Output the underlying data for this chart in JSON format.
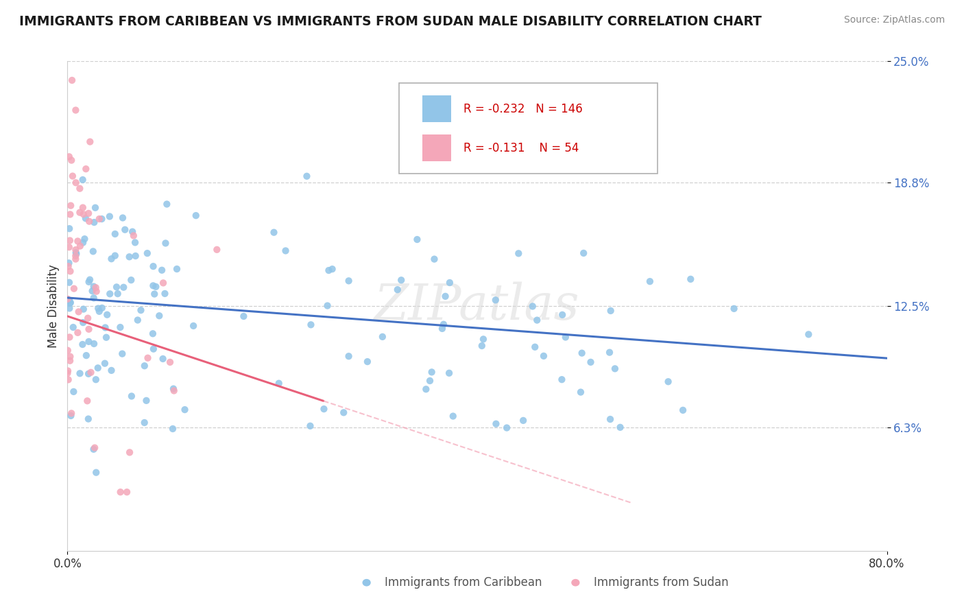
{
  "title": "IMMIGRANTS FROM CARIBBEAN VS IMMIGRANTS FROM SUDAN MALE DISABILITY CORRELATION CHART",
  "source": "Source: ZipAtlas.com",
  "ylabel": "Male Disability",
  "watermark": "ZIPatlas",
  "xlim": [
    0.0,
    0.8
  ],
  "ylim": [
    0.0,
    0.25
  ],
  "xtick_positions": [
    0.0,
    0.8
  ],
  "xtick_labels": [
    "0.0%",
    "80.0%"
  ],
  "ytick_values": [
    0.063,
    0.125,
    0.188,
    0.25
  ],
  "ytick_labels": [
    "6.3%",
    "12.5%",
    "18.8%",
    "25.0%"
  ],
  "legend1_R": "-0.232",
  "legend1_N": "146",
  "legend2_R": "-0.131",
  "legend2_N": "54",
  "caribbean_color": "#92c5e8",
  "sudan_color": "#f4a7b9",
  "caribbean_line_color": "#4472c4",
  "sudan_line_color": "#e8607a",
  "background_color": "#ffffff",
  "grid_color": "#d0d0d0",
  "ytick_color": "#4472c4",
  "title_color": "#1a1a1a",
  "source_color": "#888888",
  "watermark_color": "#d8d8d8",
  "legend_text_color": "#cc0000",
  "bottom_legend_text_color": "#555555"
}
